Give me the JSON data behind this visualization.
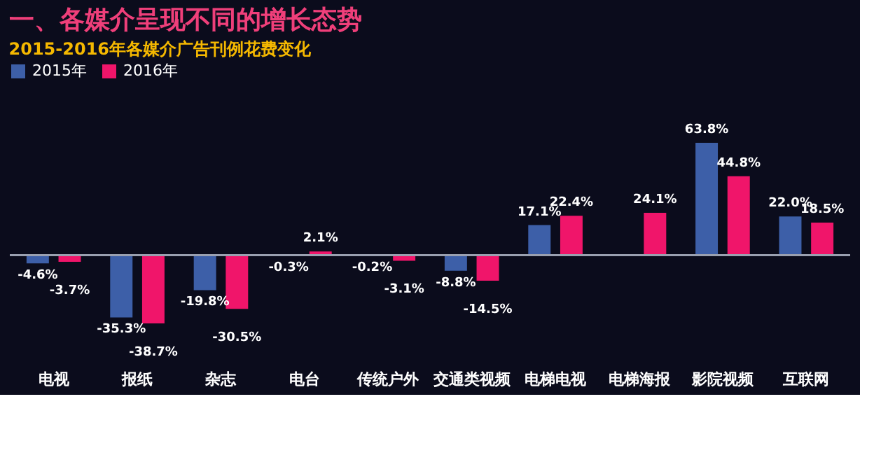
{
  "chart_data": {
    "type": "bar",
    "title": "一、各媒介呈现不同的增长态势",
    "subtitle": "2015-2016年各媒介广告刊例花费变化",
    "categories": [
      "电视",
      "报纸",
      "杂志",
      "电台",
      "传统户外",
      "交通类视频",
      "电梯电视",
      "电梯海报",
      "影院视频",
      "互联网"
    ],
    "series": [
      {
        "name": "2015年",
        "color": "#3d5fa8",
        "values": [
          -4.6,
          -35.3,
          -19.8,
          -0.3,
          -0.2,
          -8.8,
          17.1,
          null,
          63.8,
          22.0
        ],
        "value_labels": [
          "-4.6%",
          "-35.3%",
          "-19.8%",
          "-0.3%",
          "-0.2%",
          "-8.8%",
          "17.1%",
          null,
          "63.8%",
          "22.0%"
        ]
      },
      {
        "name": "2016年",
        "color": "#f0156a",
        "values": [
          -3.7,
          -38.7,
          -30.5,
          2.1,
          -3.1,
          -14.5,
          22.4,
          24.1,
          44.8,
          18.5
        ],
        "value_labels": [
          "-3.7%",
          "-38.7%",
          "-30.5%",
          "2.1%",
          "-3.1%",
          "-14.5%",
          "22.4%",
          "24.1%",
          "44.8%",
          "18.5%"
        ]
      }
    ],
    "legend": "top",
    "grid": false
  }
}
